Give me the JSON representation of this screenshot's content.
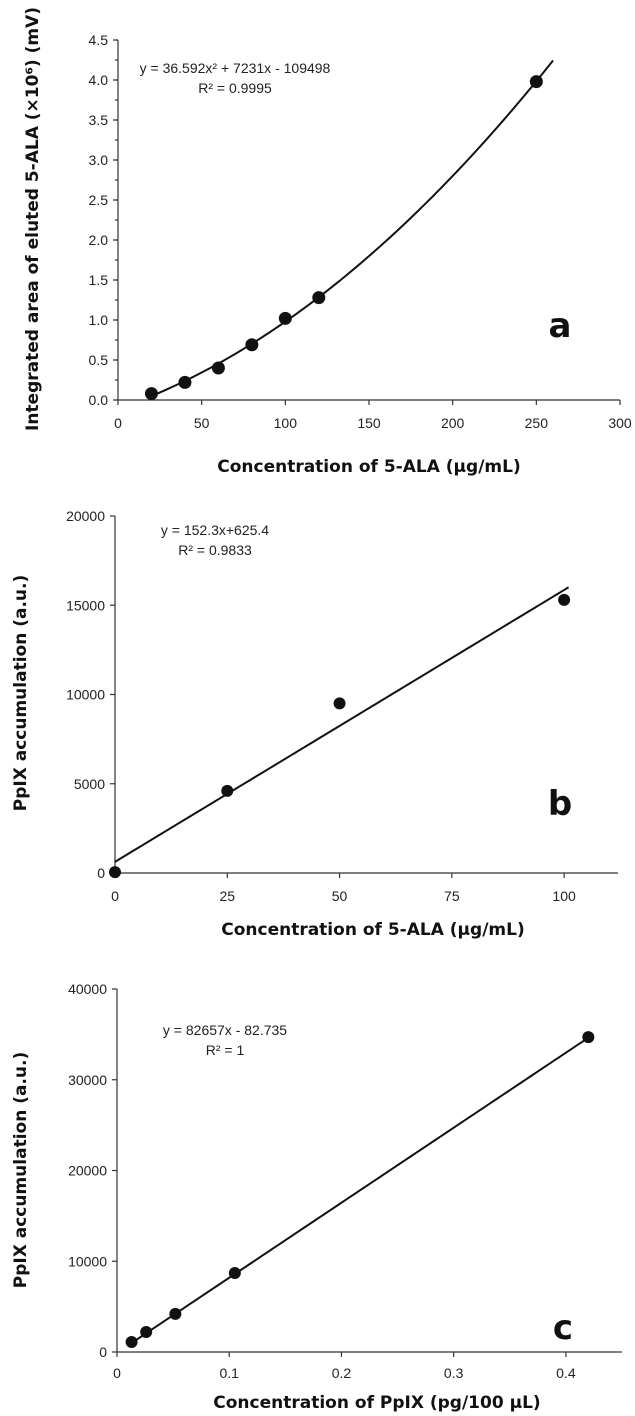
{
  "chart_data": [
    {
      "type": "scatter",
      "panel_label": "a",
      "xlabel": "Concentration of 5-ALA (µg/mL)",
      "ylabel": "Integrated area of eluted 5-ALA (×10⁶) (mV)",
      "xlim": [
        0,
        300
      ],
      "ylim": [
        0,
        4.5
      ],
      "x_ticks": [
        "0",
        "50",
        "100",
        "150",
        "200",
        "250",
        "300"
      ],
      "y_ticks": [
        "0.0",
        "0.5",
        "1.0",
        "1.5",
        "2.0",
        "2.5",
        "3.0",
        "3.5",
        "4.0",
        "4.5"
      ],
      "series": [
        {
          "x": [
            20,
            40,
            60,
            80,
            100,
            120,
            250
          ],
          "y": [
            0.08,
            0.22,
            0.4,
            0.69,
            1.02,
            1.28,
            3.98
          ]
        }
      ],
      "trendline": {
        "kind": "poly2",
        "coef": [
          36.592,
          7231,
          -109498
        ],
        "scale": 1e-06,
        "x_range": [
          18,
          260
        ]
      },
      "equation": "y = 36.592x² + 7231x - 109498",
      "r2": "R² = 0.9995",
      "grid": false,
      "legend": "none"
    },
    {
      "type": "scatter",
      "panel_label": "b",
      "xlabel": "Concentration of 5-ALA (µg/mL)",
      "ylabel": "PpIX accumulation (a.u.)",
      "xlim": [
        0,
        112
      ],
      "ylim": [
        0,
        20000
      ],
      "x_ticks": [
        "0",
        "25",
        "50",
        "75",
        "100"
      ],
      "y_ticks": [
        "0",
        "5000",
        "10000",
        "15000",
        "20000"
      ],
      "series": [
        {
          "x": [
            0,
            25,
            50,
            100
          ],
          "y": [
            50,
            4600,
            9500,
            15300
          ]
        }
      ],
      "trendline": {
        "kind": "linear",
        "coef": [
          152.3,
          625.4
        ],
        "scale": 1,
        "x_range": [
          0,
          101
        ]
      },
      "equation": "y = 152.3x+625.4",
      "r2": "R² = 0.9833",
      "grid": false,
      "legend": "none"
    },
    {
      "type": "scatter",
      "panel_label": "c",
      "xlabel": "Concentration of PpIX (pg/100 µL)",
      "ylabel": "PpIX accumulation (a.u.)",
      "xlim": [
        0,
        0.45
      ],
      "ylim": [
        0,
        40000
      ],
      "x_ticks": [
        "0",
        "0.1",
        "0.2",
        "0.3",
        "0.4"
      ],
      "y_ticks": [
        "0",
        "10000",
        "20000",
        "30000",
        "40000"
      ],
      "series": [
        {
          "x": [
            0.013,
            0.026,
            0.052,
            0.105,
            0.42
          ],
          "y": [
            1100,
            2200,
            4200,
            8700,
            34700
          ]
        }
      ],
      "trendline": {
        "kind": "linear",
        "coef": [
          82657,
          -82.735
        ],
        "scale": 1,
        "x_range": [
          0.013,
          0.42
        ]
      },
      "equation": "y = 82657x - 82.735",
      "r2": "R² = 1",
      "grid": false,
      "legend": "none"
    }
  ]
}
